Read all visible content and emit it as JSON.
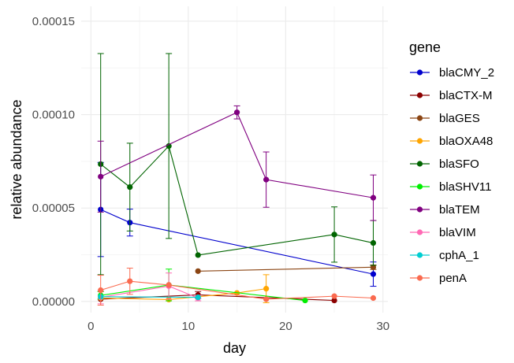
{
  "chart_data": {
    "type": "line",
    "xlabel": "day",
    "ylabel": "relative abundance",
    "legend_title": "gene",
    "legend_position": "right",
    "grid": true,
    "xlim": [
      -1,
      30.5
    ],
    "ylim": [
      -6e-06,
      0.000158
    ],
    "x_ticks": [
      0,
      10,
      20,
      30
    ],
    "x_tick_labels": [
      "0",
      "10",
      "20",
      "30"
    ],
    "y_ticks": [
      0,
      5e-05,
      0.0001,
      0.00015
    ],
    "y_tick_labels": [
      "0.00000",
      "0.00005",
      "0.00010",
      "0.00015"
    ],
    "series": [
      {
        "name": "blaCMY_2",
        "color": "#0000cd",
        "x": [
          1,
          4,
          29
        ],
        "y": [
          4.92e-05,
          4.22e-05,
          1.46e-05
        ],
        "err": [
          2.52e-05,
          7.2e-06,
          6.5e-06
        ]
      },
      {
        "name": "blaCTX-M",
        "color": "#8b0000",
        "x": [
          1,
          11,
          25
        ],
        "y": [
          1.2e-06,
          3.5e-06,
          5e-07
        ],
        "err": [
          0,
          1.8e-06,
          0
        ]
      },
      {
        "name": "blaGES",
        "color": "#8b4513",
        "x": [
          11,
          29
        ],
        "y": [
          1.62e-05,
          1.83e-05
        ],
        "err": [
          0,
          1.2e-06
        ]
      },
      {
        "name": "blaOXA48",
        "color": "#ffa500",
        "x": [
          1,
          8,
          15,
          18
        ],
        "y": [
          1.8e-06,
          1e-06,
          4.5e-06,
          6.8e-06
        ],
        "err": [
          0,
          0,
          0,
          7.5e-06
        ]
      },
      {
        "name": "blaSFO",
        "color": "#006400",
        "x": [
          1,
          4,
          8,
          11,
          25,
          29
        ],
        "y": [
          7.35e-05,
          6.12e-05,
          8.32e-05,
          2.48e-05,
          3.58e-05,
          3.13e-05
        ],
        "err": [
          5.92e-05,
          2.35e-05,
          4.95e-05,
          0,
          1.48e-05,
          1.2e-05
        ]
      },
      {
        "name": "blaSHV11",
        "color": "#00ee00",
        "x": [
          1,
          8,
          22
        ],
        "y": [
          3.2e-06,
          8.8e-06,
          5e-07
        ],
        "err": [
          2e-06,
          8.5e-06,
          0
        ]
      },
      {
        "name": "blaTEM",
        "color": "#800080",
        "x": [
          1,
          15,
          18,
          29
        ],
        "y": [
          6.68e-05,
          0.0001012,
          6.52e-05,
          5.55e-05
        ],
        "err": [
          1.9e-05,
          3.5e-06,
          1.48e-05,
          1.22e-05
        ]
      },
      {
        "name": "blaVIM",
        "color": "#ff69b4",
        "x": [
          1,
          8,
          11
        ],
        "y": [
          2.2e-06,
          8.2e-06,
          1.8e-06
        ],
        "err": [
          3.5e-06,
          7e-06,
          1.5e-06
        ]
      },
      {
        "name": "cphA_1",
        "color": "#00ced1",
        "x": [
          1,
          11
        ],
        "y": [
          2.5e-06,
          2.2e-06
        ],
        "err": [
          0,
          0
        ]
      },
      {
        "name": "penA",
        "color": "#fa6a4f",
        "x": [
          1,
          4,
          8,
          18,
          25,
          29
        ],
        "y": [
          6e-06,
          1.08e-05,
          8.8e-06,
          1.2e-06,
          2.8e-06,
          1.8e-06
        ],
        "err": [
          8e-06,
          7e-06,
          0,
          0,
          0,
          0
        ]
      }
    ]
  }
}
